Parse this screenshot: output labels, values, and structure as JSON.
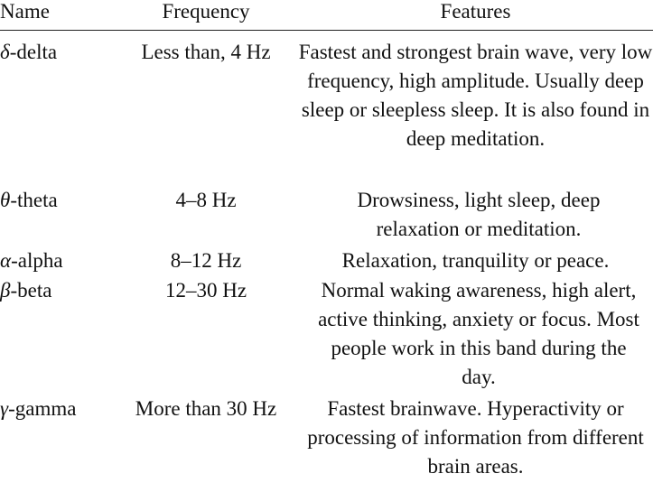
{
  "table": {
    "headers": {
      "name": "Name",
      "frequency": "Frequency",
      "features": "Features"
    },
    "rows": [
      {
        "symbol": "δ",
        "name": "-delta",
        "frequency": "Less than, 4 Hz",
        "features": "Fastest and strongest brain wave, very low frequency, high amplitude. Usually deep sleep or sleepless sleep. It is also found in deep meditation."
      },
      {
        "symbol": "θ",
        "name": "-theta",
        "frequency": "4–8 Hz",
        "features": "Drowsiness, light sleep, deep relaxation or meditation."
      },
      {
        "symbol": "α",
        "name": "-alpha",
        "frequency": "8–12 Hz",
        "features": "Relaxation, tranquility or peace."
      },
      {
        "symbol": "β",
        "name": "-beta",
        "frequency": "12–30 Hz",
        "features": "Normal waking awareness, high alert, active thinking, anxiety or focus. Most people work in this band during the day."
      },
      {
        "symbol": "γ",
        "name": "-gamma",
        "frequency": "More than 30 Hz",
        "features": "Fastest brainwave. Hyperactivity or processing of information from different brain areas."
      }
    ]
  }
}
